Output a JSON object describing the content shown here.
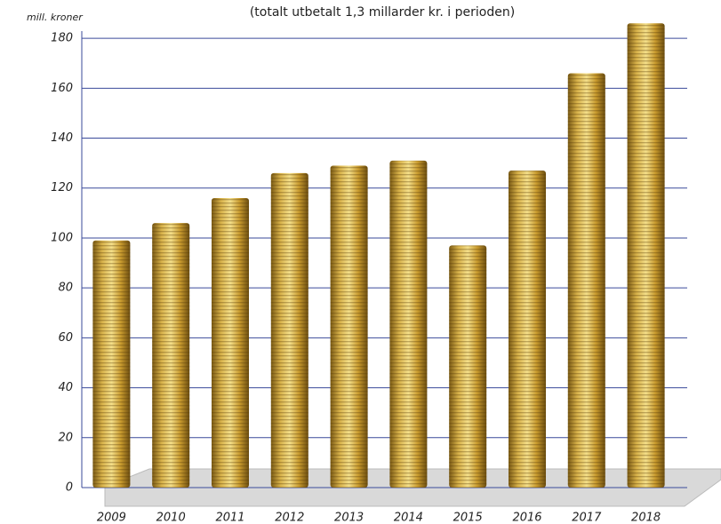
{
  "chart_data": {
    "type": "bar",
    "subtitle": "(totalt utbetalt 1,3 millarder kr. i perioden)",
    "y_label": "mill. kroner",
    "categories": [
      "2009",
      "2010",
      "2011",
      "2012",
      "2013",
      "2014",
      "2015",
      "2016",
      "2017",
      "2018"
    ],
    "values": [
      99,
      106,
      116,
      126,
      129,
      131,
      97,
      127,
      166,
      186
    ],
    "color": "#c9a032",
    "ylim": [
      0,
      190
    ],
    "yticks": [
      0,
      20,
      40,
      60,
      80,
      100,
      120,
      140,
      160,
      180
    ],
    "grid": true
  }
}
